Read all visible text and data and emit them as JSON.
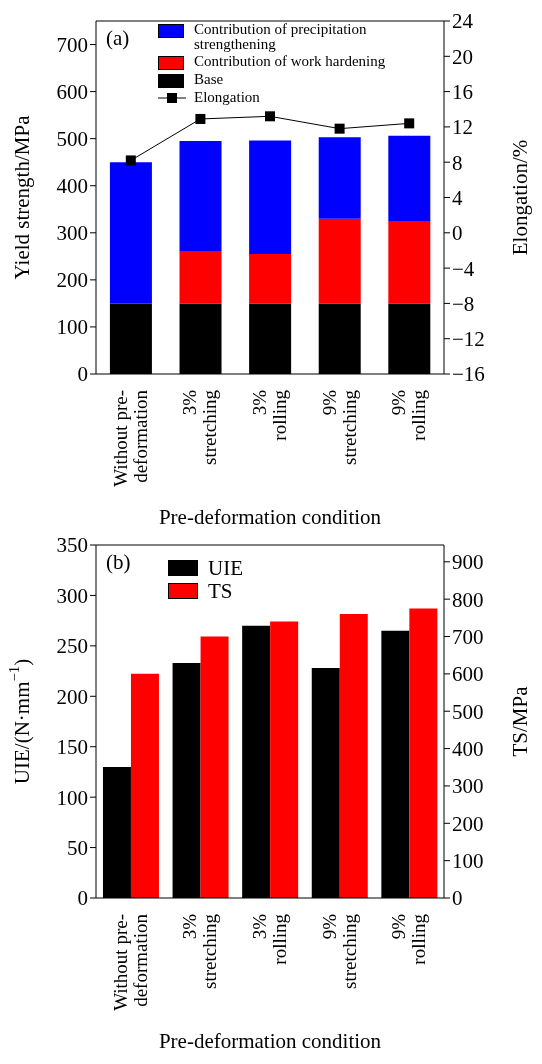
{
  "chart_data": [
    {
      "type": "bar",
      "title": "(a)",
      "xlabel": "Pre-deformation condition",
      "ylabel": "Yield strength/MPa",
      "y2label": "Elongation/%",
      "categories": [
        "Without pre-deformation",
        "3% stretching",
        "3% rolling",
        "9% stretching",
        "9% rolling"
      ],
      "stacked": true,
      "series": [
        {
          "name": "Base",
          "color": "#000000",
          "values": [
            150,
            150,
            150,
            150,
            150
          ]
        },
        {
          "name": "Contribution of work hardening",
          "color": "#ff0000",
          "values": [
            0,
            110,
            105,
            180,
            175
          ]
        },
        {
          "name": "Contribution of precipitation strengthening",
          "color": "#0000ff",
          "values": [
            300,
            235,
            241,
            173,
            181
          ]
        },
        {
          "name": "Elongation",
          "type": "line",
          "axis": "y2",
          "color": "#000000",
          "marker": "square",
          "values": [
            8.2,
            12.9,
            13.2,
            11.8,
            12.4
          ]
        }
      ],
      "ylim": [
        0,
        750
      ],
      "yticks": [
        0,
        100,
        200,
        300,
        400,
        500,
        600,
        700
      ],
      "y2lim": [
        -16,
        24
      ],
      "y2ticks": [
        {
          "value": -16,
          "label": "−16"
        },
        {
          "value": -12,
          "label": "−12"
        },
        {
          "value": -8,
          "label": "−8"
        },
        {
          "value": -4,
          "label": "−4"
        },
        0,
        4,
        8,
        12,
        16,
        20,
        24
      ],
      "legend": "top",
      "grid": false
    },
    {
      "type": "bar",
      "title": "(b)",
      "xlabel": "Pre-deformation condition",
      "ylabel": "UIE/(N·mm$^{−1}$)",
      "y2label": "TS/MPa",
      "categories": [
        "Without pre-deformation",
        "3% stretching",
        "3% rolling",
        "9% stretching",
        "9% rolling"
      ],
      "series": [
        {
          "name": "UIE",
          "color": "#000000",
          "values": [
            130,
            233,
            270,
            228,
            265
          ]
        },
        {
          "name": "TS",
          "color": "#ff0000",
          "axis": "y2",
          "values": [
            600,
            700,
            740,
            760,
            775
          ]
        }
      ],
      "ylim": [
        0,
        350
      ],
      "yticks": [
        0,
        50,
        100,
        150,
        200,
        250,
        300,
        350
      ],
      "y2lim": [
        0,
        945
      ],
      "y2ticks": [
        0,
        100,
        200,
        300,
        400,
        500,
        600,
        700,
        800,
        900
      ],
      "legend": "top left",
      "grid": false
    }
  ]
}
